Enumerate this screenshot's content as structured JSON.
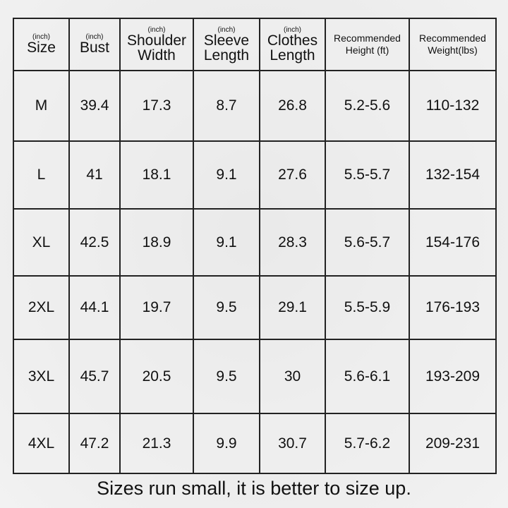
{
  "headers": [
    {
      "unit": "(inch)",
      "label": "Size"
    },
    {
      "unit": "(inch)",
      "label": "Bust"
    },
    {
      "unit": "(inch)",
      "label": "Shoulder Width"
    },
    {
      "unit": "(inch)",
      "label": "Sleeve Length"
    },
    {
      "unit": "(inch)",
      "label": "Clothes Length"
    },
    {
      "unit": "",
      "label": "Recommended Height (ft)"
    },
    {
      "unit": "",
      "label": "Recommended Weight(lbs)"
    }
  ],
  "rows": [
    [
      "M",
      "39.4",
      "17.3",
      "8.7",
      "26.8",
      "5.2-5.6",
      "110-132"
    ],
    [
      "L",
      "41",
      "18.1",
      "9.1",
      "27.6",
      "5.5-5.7",
      "132-154"
    ],
    [
      "XL",
      "42.5",
      "18.9",
      "9.1",
      "28.3",
      "5.6-5.7",
      "154-176"
    ],
    [
      "2XL",
      "44.1",
      "19.7",
      "9.5",
      "29.1",
      "5.5-5.9",
      "176-193"
    ],
    [
      "3XL",
      "45.7",
      "20.5",
      "9.5",
      "30",
      "5.6-6.1",
      "193-209"
    ],
    [
      "4XL",
      "47.2",
      "21.3",
      "9.9",
      "30.7",
      "5.7-6.2",
      "209-231"
    ]
  ],
  "note": "Sizes run small, it is better to size up."
}
